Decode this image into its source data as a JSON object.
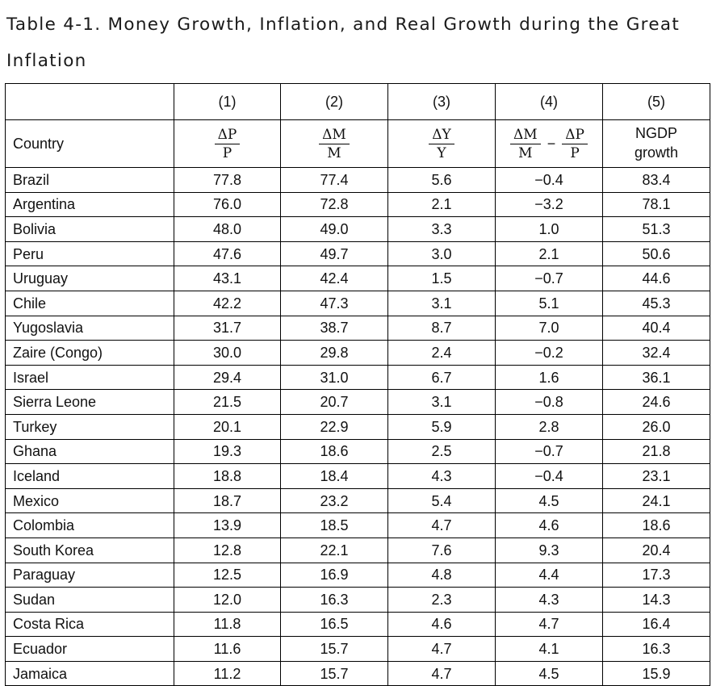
{
  "title": "Table 4-1. Money Growth, Inflation, and Real Growth during the Great Inflation",
  "column_numbers": [
    "(1)",
    "(2)",
    "(3)",
    "(4)",
    "(5)"
  ],
  "headers": {
    "country": "Country",
    "col1": {
      "num": "ΔP",
      "den": "P"
    },
    "col2": {
      "num": "ΔM",
      "den": "M"
    },
    "col3": {
      "num": "ΔY",
      "den": "Y"
    },
    "col4": {
      "a_num": "ΔM",
      "a_den": "M",
      "op": "−",
      "b_num": "ΔP",
      "b_den": "P"
    },
    "col5": {
      "line1": "NGDP",
      "line2": "growth"
    }
  },
  "rows": [
    {
      "country": "Brazil",
      "values": [
        "77.8",
        "77.4",
        "5.6",
        "−0.4",
        "83.4"
      ]
    },
    {
      "country": "Argentina",
      "values": [
        "76.0",
        "72.8",
        "2.1",
        "−3.2",
        "78.1"
      ]
    },
    {
      "country": "Bolivia",
      "values": [
        "48.0",
        "49.0",
        "3.3",
        "1.0",
        "51.3"
      ]
    },
    {
      "country": "Peru",
      "values": [
        "47.6",
        "49.7",
        "3.0",
        "2.1",
        "50.6"
      ]
    },
    {
      "country": "Uruguay",
      "values": [
        "43.1",
        "42.4",
        "1.5",
        "−0.7",
        "44.6"
      ]
    },
    {
      "country": "Chile",
      "values": [
        "42.2",
        "47.3",
        "3.1",
        "5.1",
        "45.3"
      ]
    },
    {
      "country": "Yugoslavia",
      "values": [
        "31.7",
        "38.7",
        "8.7",
        "7.0",
        "40.4"
      ]
    },
    {
      "country": "Zaire (Congo)",
      "values": [
        "30.0",
        "29.8",
        "2.4",
        "−0.2",
        "32.4"
      ]
    },
    {
      "country": "Israel",
      "values": [
        "29.4",
        "31.0",
        "6.7",
        "1.6",
        "36.1"
      ]
    },
    {
      "country": "Sierra Leone",
      "values": [
        "21.5",
        "20.7",
        "3.1",
        "−0.8",
        "24.6"
      ]
    },
    {
      "country": "Turkey",
      "values": [
        "20.1",
        "22.9",
        "5.9",
        "2.8",
        "26.0"
      ]
    },
    {
      "country": "Ghana",
      "values": [
        "19.3",
        "18.6",
        "2.5",
        "−0.7",
        "21.8"
      ]
    },
    {
      "country": "Iceland",
      "values": [
        "18.8",
        "18.4",
        "4.3",
        "−0.4",
        "23.1"
      ]
    },
    {
      "country": "Mexico",
      "values": [
        "18.7",
        "23.2",
        "5.4",
        "4.5",
        "24.1"
      ]
    },
    {
      "country": "Colombia",
      "values": [
        "13.9",
        "18.5",
        "4.7",
        "4.6",
        "18.6"
      ]
    },
    {
      "country": "South Korea",
      "values": [
        "12.8",
        "22.1",
        "7.6",
        "9.3",
        "20.4"
      ]
    },
    {
      "country": "Paraguay",
      "values": [
        "12.5",
        "16.9",
        "4.8",
        "4.4",
        "17.3"
      ]
    },
    {
      "country": "Sudan",
      "values": [
        "12.0",
        "16.3",
        "2.3",
        "4.3",
        "14.3"
      ]
    },
    {
      "country": "Costa Rica",
      "values": [
        "11.8",
        "16.5",
        "4.6",
        "4.7",
        "16.4"
      ]
    },
    {
      "country": "Ecuador",
      "values": [
        "11.6",
        "15.7",
        "4.7",
        "4.1",
        "16.3"
      ]
    },
    {
      "country": "Jamaica",
      "values": [
        "11.2",
        "15.7",
        "4.7",
        "4.5",
        "15.9"
      ]
    }
  ]
}
